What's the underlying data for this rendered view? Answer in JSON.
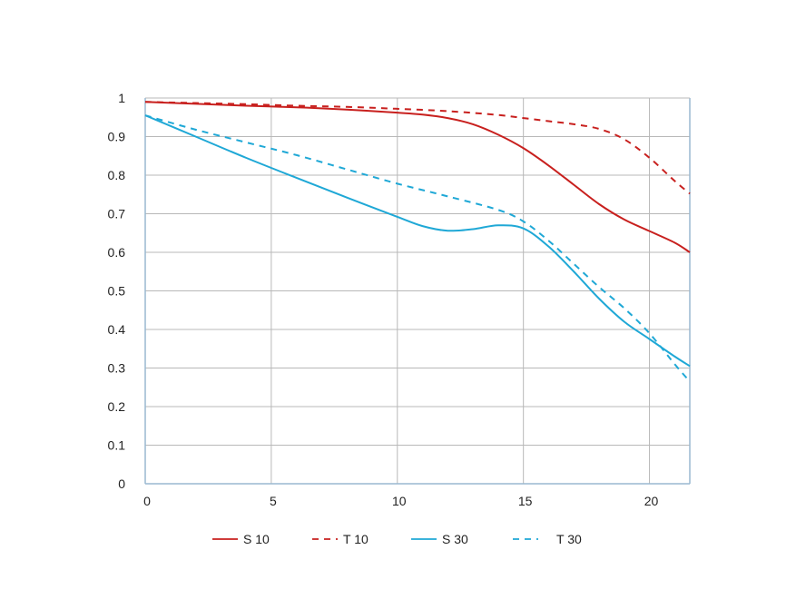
{
  "chart_data": {
    "type": "line",
    "title": "",
    "xlabel": "",
    "ylabel": "",
    "xlim": [
      0,
      21.6
    ],
    "ylim": [
      0,
      1
    ],
    "grid": true,
    "legend_placement": "bottom",
    "x_ticks": [
      0,
      5,
      10,
      15,
      20
    ],
    "y_ticks": [
      0,
      0.1,
      0.2,
      0.3,
      0.4,
      0.5,
      0.6,
      0.7,
      0.8,
      0.9,
      1
    ],
    "x_tick_labels": [
      "0",
      "5",
      "10",
      "15",
      "20"
    ],
    "y_tick_labels": [
      "0",
      "0.1",
      "0.2",
      "0.3",
      "0.4",
      "0.5",
      "0.6",
      "0.7",
      "0.8",
      "0.9",
      "1"
    ],
    "series": [
      {
        "name": "S 10",
        "color": "#c8201e",
        "dash": "solid",
        "points": [
          [
            0,
            0.99
          ],
          [
            2,
            0.985
          ],
          [
            4,
            0.98
          ],
          [
            6,
            0.976
          ],
          [
            8,
            0.97
          ],
          [
            10,
            0.962
          ],
          [
            11,
            0.957
          ],
          [
            12,
            0.948
          ],
          [
            13,
            0.932
          ],
          [
            14,
            0.905
          ],
          [
            15,
            0.87
          ],
          [
            16,
            0.825
          ],
          [
            17,
            0.775
          ],
          [
            18,
            0.725
          ],
          [
            19,
            0.685
          ],
          [
            20,
            0.655
          ],
          [
            21,
            0.625
          ],
          [
            21.6,
            0.6
          ]
        ]
      },
      {
        "name": "T 10",
        "color": "#c8201e",
        "dash": "dashed",
        "points": [
          [
            0,
            0.99
          ],
          [
            2,
            0.987
          ],
          [
            4,
            0.984
          ],
          [
            6,
            0.98
          ],
          [
            8,
            0.977
          ],
          [
            10,
            0.972
          ],
          [
            12,
            0.966
          ],
          [
            14,
            0.956
          ],
          [
            15,
            0.948
          ],
          [
            16,
            0.94
          ],
          [
            17,
            0.932
          ],
          [
            18,
            0.92
          ],
          [
            19,
            0.893
          ],
          [
            20,
            0.845
          ],
          [
            21,
            0.785
          ],
          [
            21.6,
            0.752
          ]
        ]
      },
      {
        "name": "S 30",
        "color": "#1fa8d6",
        "dash": "solid",
        "points": [
          [
            0,
            0.955
          ],
          [
            2,
            0.9
          ],
          [
            4,
            0.845
          ],
          [
            6,
            0.793
          ],
          [
            8,
            0.742
          ],
          [
            10,
            0.692
          ],
          [
            11,
            0.668
          ],
          [
            12,
            0.656
          ],
          [
            13,
            0.66
          ],
          [
            14,
            0.67
          ],
          [
            15,
            0.662
          ],
          [
            16,
            0.615
          ],
          [
            17,
            0.55
          ],
          [
            18,
            0.48
          ],
          [
            19,
            0.42
          ],
          [
            20,
            0.375
          ],
          [
            21,
            0.33
          ],
          [
            21.6,
            0.305
          ]
        ]
      },
      {
        "name": "T 30",
        "color": "#1fa8d6",
        "dash": "dashed",
        "points": [
          [
            0,
            0.955
          ],
          [
            2,
            0.918
          ],
          [
            4,
            0.885
          ],
          [
            6,
            0.852
          ],
          [
            8,
            0.815
          ],
          [
            10,
            0.778
          ],
          [
            12,
            0.745
          ],
          [
            14,
            0.71
          ],
          [
            15,
            0.68
          ],
          [
            16,
            0.63
          ],
          [
            17,
            0.57
          ],
          [
            18,
            0.51
          ],
          [
            19,
            0.455
          ],
          [
            20,
            0.39
          ],
          [
            21,
            0.31
          ],
          [
            21.6,
            0.265
          ]
        ]
      }
    ]
  }
}
